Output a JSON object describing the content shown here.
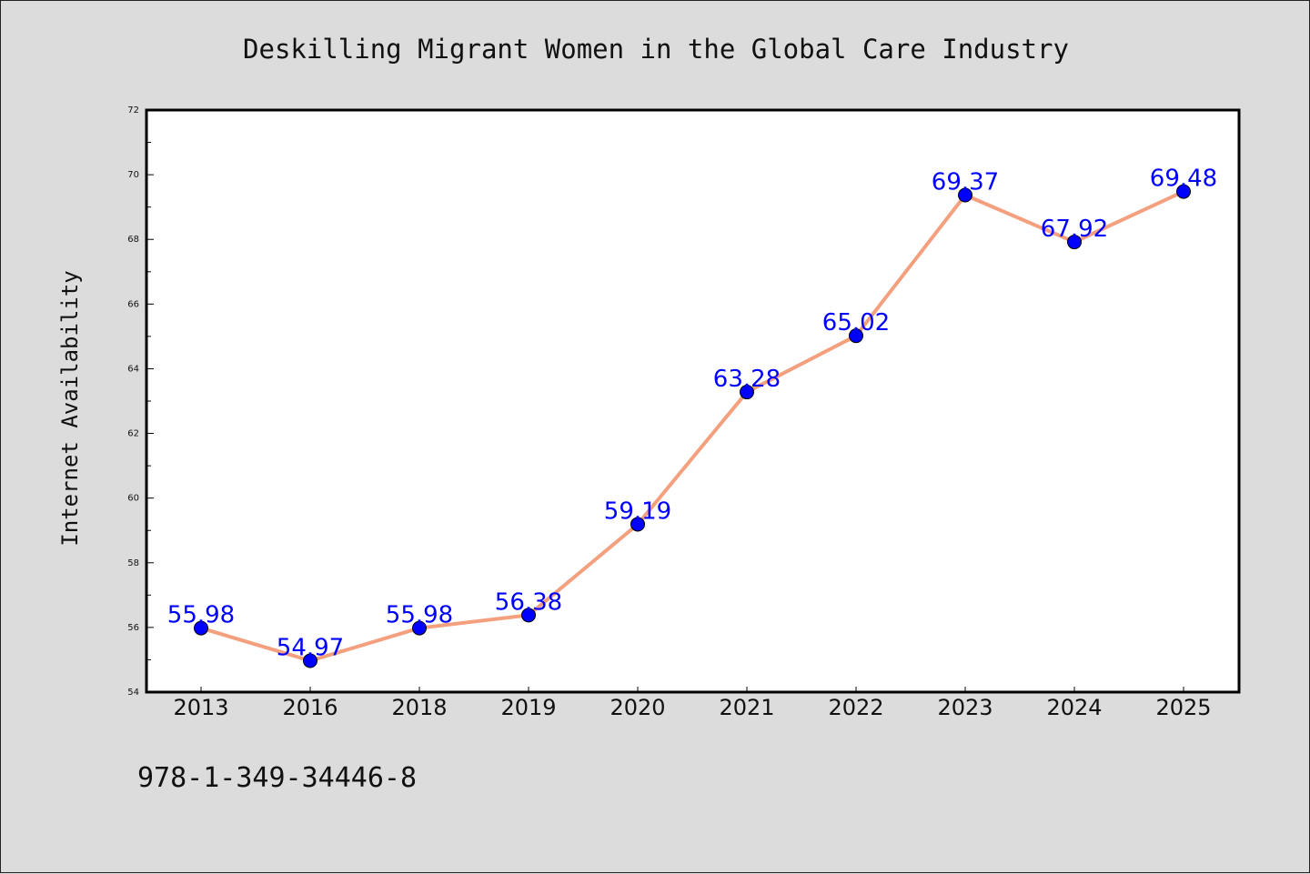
{
  "chart_data": {
    "type": "line",
    "title": "Deskilling Migrant Women in the Global Care Industry",
    "xlabel": "",
    "ylabel": "Internet Availability",
    "categories": [
      "2013",
      "2016",
      "2018",
      "2019",
      "2020",
      "2021",
      "2022",
      "2023",
      "2024",
      "2025"
    ],
    "series": [
      {
        "values": [
          55.98,
          54.97,
          55.98,
          56.38,
          59.19,
          63.28,
          65.02,
          69.37,
          67.92,
          69.48
        ]
      }
    ],
    "data_labels": [
      "55.98",
      "54.97",
      "55.98",
      "56.38",
      "59.19",
      "63.28",
      "65.02",
      "69.37",
      "67.92",
      "69.48"
    ],
    "ylim": [
      54,
      72
    ],
    "yticks": [
      "54",
      "56",
      "58",
      "60",
      "62",
      "64",
      "66",
      "68",
      "70",
      "72"
    ],
    "grid": false,
    "line_color": "#f4a07e",
    "marker_color": "#0000ff",
    "label_color": "#0000ff",
    "plot_background": "#ffffff",
    "figure_background": "#dcdcdc"
  },
  "footer": {
    "isbn": "978-1-349-34446-8"
  }
}
